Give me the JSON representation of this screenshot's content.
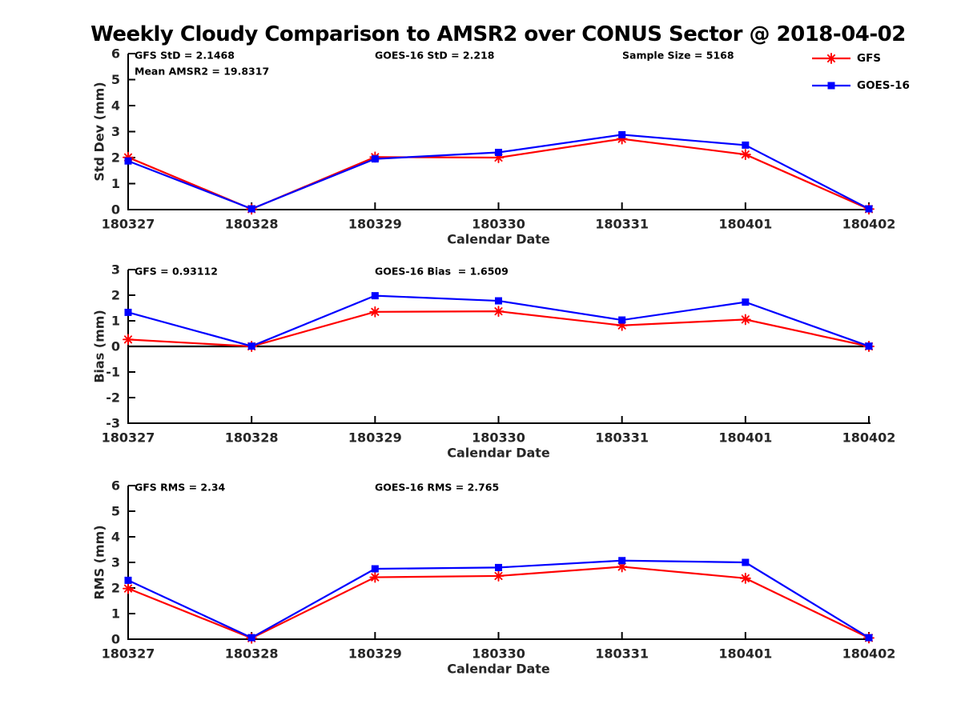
{
  "title": "Weekly Cloudy Comparison to AMSR2 over CONUS Sector @ 2018-04-02",
  "colors": {
    "gfs": "#ff0000",
    "goes16": "#0000ff",
    "axis": "#000000",
    "tick_label": "#262626",
    "zero_line": "#000000",
    "background": "#ffffff"
  },
  "legend": {
    "position": "top-right",
    "entries": [
      {
        "label": "GFS",
        "marker": "asterisk",
        "color": "#ff0000"
      },
      {
        "label": "GOES-16",
        "marker": "square",
        "color": "#0000ff"
      }
    ]
  },
  "chart_data": [
    {
      "type": "line",
      "panel": "std-dev",
      "title": "",
      "xlabel": "Calendar Date",
      "ylabel": "Std Dev (mm)",
      "ylim": [
        0,
        6
      ],
      "yticks": [
        0,
        1,
        2,
        3,
        4,
        5,
        6
      ],
      "grid": false,
      "categories": [
        "180327",
        "180328",
        "180329",
        "180330",
        "180331",
        "180401",
        "180402"
      ],
      "series": [
        {
          "name": "GFS",
          "color": "#ff0000",
          "marker": "asterisk",
          "values": [
            2.01,
            0.02,
            2.02,
            2.0,
            2.72,
            2.12,
            0.02
          ]
        },
        {
          "name": "GOES-16",
          "color": "#0000ff",
          "marker": "square",
          "values": [
            1.87,
            0.03,
            1.95,
            2.2,
            2.88,
            2.48,
            0.03
          ]
        }
      ],
      "annotations": [
        {
          "text": "GFS StD = 2.1468",
          "col": 0,
          "row": 0
        },
        {
          "text": "Mean AMSR2 = 19.8317",
          "col": 0,
          "row": 1
        },
        {
          "text": "GOES-16 StD = 2.218",
          "col": 1,
          "row": 0
        },
        {
          "text": "Sample Size = 5168",
          "col": 2,
          "row": 0
        }
      ]
    },
    {
      "type": "line",
      "panel": "bias",
      "title": "",
      "xlabel": "Calendar Date",
      "ylabel": "Bias (mm)",
      "ylim": [
        -3,
        3
      ],
      "yticks": [
        -3,
        -2,
        -1,
        0,
        1,
        2,
        3
      ],
      "grid": false,
      "zero_line": true,
      "categories": [
        "180327",
        "180328",
        "180329",
        "180330",
        "180331",
        "180401",
        "180402"
      ],
      "series": [
        {
          "name": "GFS",
          "color": "#ff0000",
          "marker": "asterisk",
          "values": [
            0.27,
            0.0,
            1.35,
            1.37,
            0.82,
            1.05,
            0.0
          ]
        },
        {
          "name": "GOES-16",
          "color": "#0000ff",
          "marker": "square",
          "values": [
            1.33,
            0.01,
            1.98,
            1.78,
            1.03,
            1.73,
            0.01
          ]
        }
      ],
      "annotations": [
        {
          "text": "GFS = 0.93112",
          "col": 0,
          "row": 0
        },
        {
          "text": "GOES-16 Bias  = 1.6509",
          "col": 1,
          "row": 0
        }
      ]
    },
    {
      "type": "line",
      "panel": "rms",
      "title": "",
      "xlabel": "Calendar Date",
      "ylabel": "RMS (mm)",
      "ylim": [
        0,
        6
      ],
      "yticks": [
        0,
        1,
        2,
        3,
        4,
        5,
        6
      ],
      "grid": false,
      "categories": [
        "180327",
        "180328",
        "180329",
        "180330",
        "180331",
        "180401",
        "180402"
      ],
      "series": [
        {
          "name": "GFS",
          "color": "#ff0000",
          "marker": "asterisk",
          "values": [
            1.98,
            0.04,
            2.42,
            2.47,
            2.83,
            2.38,
            0.05
          ]
        },
        {
          "name": "GOES-16",
          "color": "#0000ff",
          "marker": "square",
          "values": [
            2.3,
            0.06,
            2.75,
            2.8,
            3.07,
            3.0,
            0.06
          ]
        }
      ],
      "annotations": [
        {
          "text": "GFS RMS = 2.34",
          "col": 0,
          "row": 0
        },
        {
          "text": "GOES-16 RMS = 2.765",
          "col": 1,
          "row": 0
        }
      ]
    }
  ]
}
